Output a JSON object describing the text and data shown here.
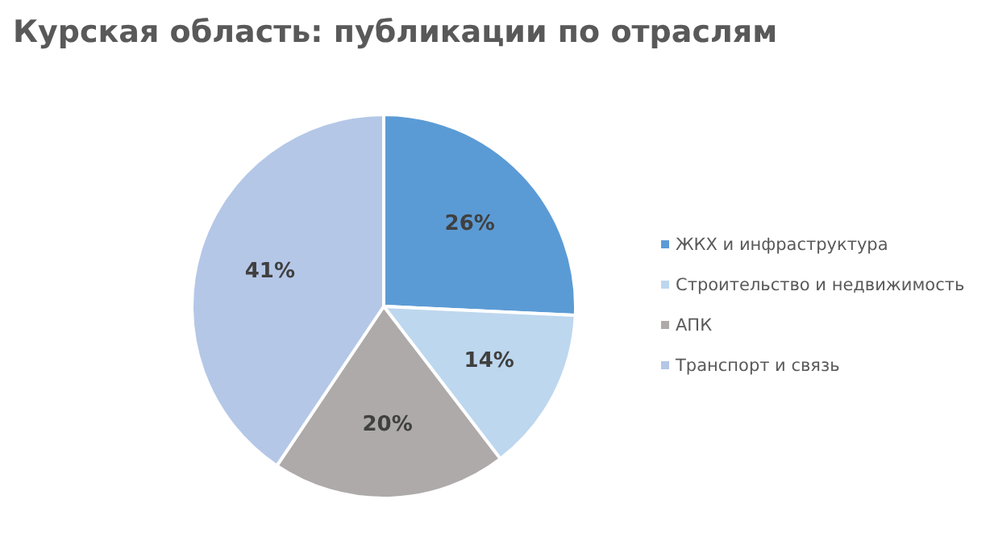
{
  "chart_data": {
    "type": "pie",
    "title": "Курская область: публикации по отраслям",
    "categories": [
      "ЖКХ и инфраструктура",
      "Строительство и недвижимость",
      "АПК",
      "Транспорт и связь"
    ],
    "values": [
      26,
      14,
      20,
      41
    ],
    "colors": [
      "#5b9bd5",
      "#bdd7ee",
      "#aeaaaa",
      "#b4c7e7"
    ],
    "value_labels": [
      "26%",
      "14%",
      "20%",
      "41%"
    ],
    "legend": "right"
  }
}
